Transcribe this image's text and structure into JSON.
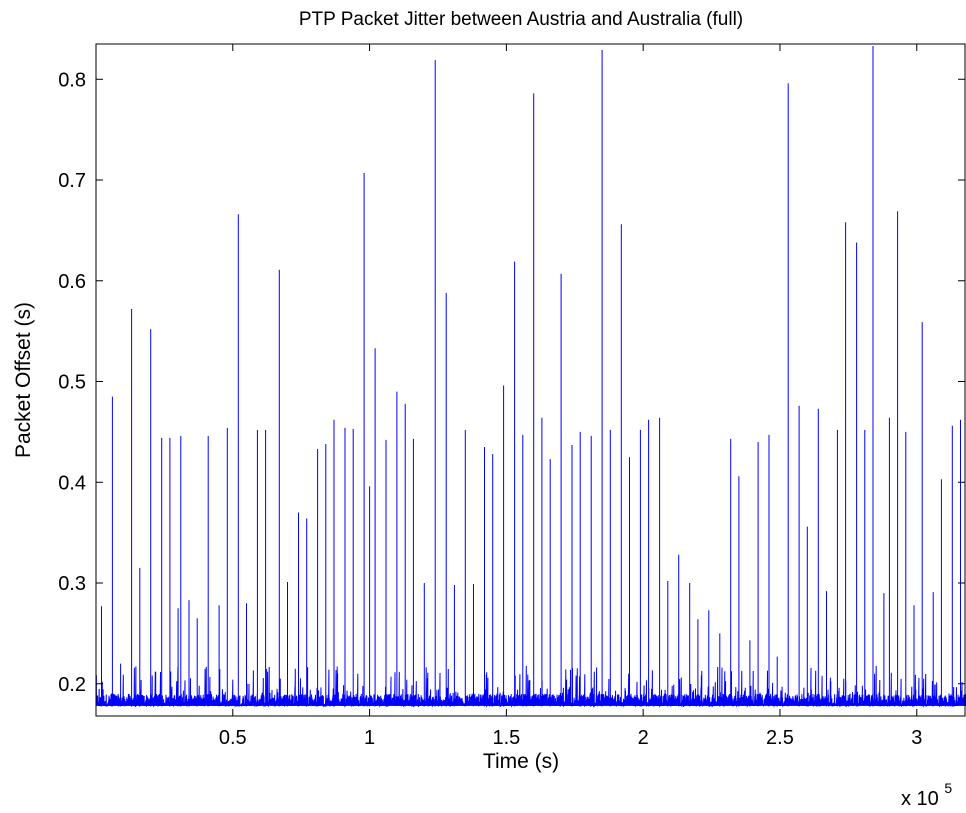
{
  "chart_data": {
    "type": "line",
    "title": "PTP Packet Jitter between Austria and Australia (full)",
    "xlabel": "Time (s)",
    "ylabel": "Packet Offset (s)",
    "x_multiplier_label": "x 10",
    "x_multiplier_exponent": "5",
    "xlim": [
      0.0,
      3.18
    ],
    "ylim": [
      0.168,
      0.835
    ],
    "x_ticks": [
      0.5,
      1,
      1.5,
      2,
      2.5,
      3
    ],
    "x_tick_labels": [
      "0.5",
      "1",
      "1.5",
      "2",
      "2.5",
      "3"
    ],
    "y_ticks": [
      0.2,
      0.3,
      0.4,
      0.5,
      0.6,
      0.7,
      0.8
    ],
    "y_tick_labels": [
      "0.2",
      "0.3",
      "0.4",
      "0.5",
      "0.6",
      "0.7",
      "0.8"
    ],
    "grid": false,
    "legend": "none",
    "line_color": "#0000ff",
    "baseline": 0.178,
    "series": [
      {
        "x": [
          0.02,
          0.06,
          0.09,
          0.13,
          0.16,
          0.2,
          0.24,
          0.27,
          0.3,
          0.31,
          0.34,
          0.37,
          0.41,
          0.45,
          0.48,
          0.52,
          0.55,
          0.59,
          0.62,
          0.67,
          0.7,
          0.74,
          0.77,
          0.81,
          0.84,
          0.87,
          0.91,
          0.94,
          0.98,
          1.0,
          1.02,
          1.06,
          1.1,
          1.13,
          1.16,
          1.2,
          1.24,
          1.28,
          1.31,
          1.35,
          1.38,
          1.42,
          1.45,
          1.49,
          1.53,
          1.56,
          1.6,
          1.63,
          1.66,
          1.7,
          1.74,
          1.77,
          1.81,
          1.85,
          1.88,
          1.92,
          1.95,
          1.99,
          2.02,
          2.06,
          2.09,
          2.13,
          2.17,
          2.2,
          2.24,
          2.28,
          2.32,
          2.35,
          2.39,
          2.42,
          2.46,
          2.49,
          2.53,
          2.57,
          2.6,
          2.64,
          2.67,
          2.71,
          2.74,
          2.78,
          2.81,
          2.84,
          2.88,
          2.9,
          2.93,
          2.96,
          2.99,
          3.02,
          3.06,
          3.09,
          3.13,
          3.16
        ],
        "y": [
          0.277,
          0.485,
          0.22,
          0.572,
          0.315,
          0.552,
          0.444,
          0.444,
          0.275,
          0.446,
          0.283,
          0.265,
          0.446,
          0.278,
          0.454,
          0.666,
          0.28,
          0.452,
          0.452,
          0.611,
          0.301,
          0.37,
          0.364,
          0.433,
          0.438,
          0.462,
          0.454,
          0.453,
          0.707,
          0.396,
          0.533,
          0.442,
          0.49,
          0.478,
          0.443,
          0.3,
          0.819,
          0.588,
          0.298,
          0.452,
          0.299,
          0.435,
          0.428,
          0.496,
          0.619,
          0.447,
          0.786,
          0.464,
          0.423,
          0.607,
          0.437,
          0.45,
          0.446,
          0.829,
          0.452,
          0.656,
          0.425,
          0.452,
          0.462,
          0.464,
          0.302,
          0.328,
          0.3,
          0.264,
          0.273,
          0.25,
          0.443,
          0.406,
          0.243,
          0.44,
          0.447,
          0.227,
          0.796,
          0.476,
          0.356,
          0.473,
          0.292,
          0.452,
          0.658,
          0.638,
          0.452,
          0.833,
          0.29,
          0.464,
          0.669,
          0.45,
          0.278,
          0.559,
          0.291,
          0.403,
          0.456,
          0.462
        ]
      }
    ]
  }
}
